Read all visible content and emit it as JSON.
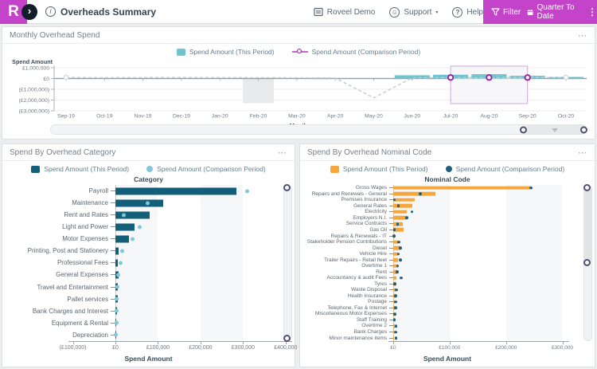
{
  "header": {
    "logo_letter": "R",
    "sidebar_toggle_icon": "›",
    "info_icon": "i",
    "title": "Overheads Summary",
    "account_label": "Roveel Demo",
    "support_label": "Support",
    "support_caret": "▾",
    "help_label": "Help",
    "filter_label": "Filter",
    "date_range_label": "Quarter To Date",
    "kebab_icon": "⋮"
  },
  "panels": {
    "monthly": {
      "title": "Monthly Overhead Spend",
      "menu_icon": "⋯"
    },
    "category": {
      "title": "Spend By Overhead Category",
      "menu_icon": "⋯"
    },
    "nominal": {
      "title": "Spend By Overhead Nominal Code",
      "menu_icon": "⋯"
    }
  },
  "colors": {
    "brand_magenta": "#C344C8",
    "teal_light": "#6FC4CF",
    "teal_dark": "#135E79",
    "teal_dot": "#7FC9D6",
    "orange": "#F5A63C",
    "navy_dot": "#1D5F7D",
    "marker_magenta": "#9A209E"
  },
  "chart_data": [
    {
      "type": "bar",
      "title": "Monthly Overhead Spend",
      "xlabel": "Month",
      "ylabel": "Spend Amount",
      "x": [
        "Sep-19",
        "Oct-19",
        "Nov-19",
        "Dec-19",
        "Jan-20",
        "Feb-20",
        "Mar-20",
        "Apr-20",
        "May-20",
        "Jun-20",
        "Jul-20",
        "Aug-20",
        "Sep-20",
        "Oct-20"
      ],
      "ylim": [
        -3000000,
        1000000
      ],
      "yticks": [
        {
          "v": 1000000,
          "label": "£1,000,000"
        },
        {
          "v": 0,
          "label": "£0"
        },
        {
          "v": -1000000,
          "label": "(£1,000,000)"
        },
        {
          "v": -2000000,
          "label": "(£2,000,000)"
        },
        {
          "v": -3000000,
          "label": "(£3,000,000)"
        }
      ],
      "series": [
        {
          "name": "Spend Amount (This Period)",
          "type": "bar",
          "values": [
            null,
            null,
            null,
            null,
            null,
            null,
            null,
            null,
            null,
            300000,
            350000,
            400000,
            250000,
            150000
          ]
        },
        {
          "name": "Spend Amount (Comparison Period)",
          "type": "line",
          "values": [
            100000,
            80000,
            90000,
            100000,
            90000,
            80000,
            70000,
            50000,
            -1800000,
            60000,
            90000,
            90000,
            90000,
            100000
          ]
        }
      ],
      "selection_range": [
        "Jul-20",
        "Sep-20"
      ],
      "highlighted_points": [
        "Jul-20",
        "Aug-20",
        "Sep-20"
      ],
      "shaded_month": "Feb-20"
    },
    {
      "type": "bar",
      "title": "Spend By Overhead Category",
      "xlabel": "Spend Amount",
      "ylabel": "Category",
      "categories": [
        "Payroll",
        "Maintenance",
        "Rent and Rates",
        "Light and Power",
        "Motor Expenses",
        "Printing, Post and Stationery",
        "Professional Fees",
        "General Expenses",
        "Travel and Entertainment",
        "Pallet services",
        "Bank Charges and Interest",
        "Equipment & Rental",
        "Depreciation"
      ],
      "series": [
        {
          "name": "Spend Amount (This Period)",
          "values": [
            285000,
            113000,
            81000,
            45000,
            31000,
            8000,
            6000,
            7000,
            5000,
            5000,
            3000,
            2500,
            1000
          ]
        },
        {
          "name": "Spend Amount (Comparison Period)",
          "values": [
            310000,
            75000,
            20000,
            57000,
            40000,
            15000,
            12000,
            7000,
            5000,
            3000,
            3000,
            2500,
            1500
          ]
        }
      ],
      "xticks": [
        {
          "v": -100000,
          "label": "(£100,000)"
        },
        {
          "v": 0,
          "label": "£0"
        },
        {
          "v": 100000,
          "label": "£100,000"
        },
        {
          "v": 200000,
          "label": "£200,000"
        },
        {
          "v": 300000,
          "label": "£300,000"
        },
        {
          "v": 400000,
          "label": "£400,000"
        }
      ],
      "xlim": [
        -100000,
        404000
      ]
    },
    {
      "type": "bar",
      "title": "Spend By Overhead Nominal Code",
      "xlabel": "Spend Amount",
      "ylabel": "Nominal Code",
      "categories": [
        "Gross Wages",
        "Repairs and Renewals - General",
        "Premises Insurance",
        "General Rates",
        "Electricity",
        "Employers N.I.",
        "Service Contracts",
        "Gas Oil",
        "Repairs & Renewals - IT",
        "Stakeholder Pension Contributions",
        "Diesel",
        "Vehicle Hire",
        "Trailer Repairs - Retail fleet",
        "Overtime 1",
        "Rent",
        "Accountancy & audit Fees",
        "Tyres",
        "Waste Disposal",
        "Health Insurance",
        "Postage",
        "Telephone, Fax & Internet",
        "Miscellaneous Motor Expenses",
        "Staff Training",
        "Overtime 2",
        "Bank Charges",
        "Minor maintenance items"
      ],
      "series": [
        {
          "name": "Spend Amount (This Period)",
          "values": [
            245000,
            75000,
            38000,
            34000,
            24000,
            22000,
            17000,
            18000,
            3000,
            10000,
            12000,
            9000,
            8000,
            8000,
            7000,
            5000,
            4000,
            6000,
            4000,
            3000,
            3000,
            2000,
            2000,
            3000,
            2000,
            2000
          ]
        },
        {
          "name": "Spend Amount (Comparison Period)",
          "values": [
            244000,
            48000,
            2000,
            9000,
            33000,
            24000,
            8000,
            2000,
            1000,
            10000,
            13000,
            9000,
            13000,
            8000,
            7000,
            14000,
            3000,
            6000,
            4000,
            4000,
            4000,
            3000,
            2000,
            5000,
            4000,
            5000
          ]
        }
      ],
      "xticks": [
        {
          "v": 0,
          "label": "£0"
        },
        {
          "v": 100000,
          "label": "£100,000"
        },
        {
          "v": 200000,
          "label": "£200,000"
        },
        {
          "v": 300000,
          "label": "£300,000"
        }
      ],
      "xlim": [
        0,
        336000
      ]
    }
  ]
}
